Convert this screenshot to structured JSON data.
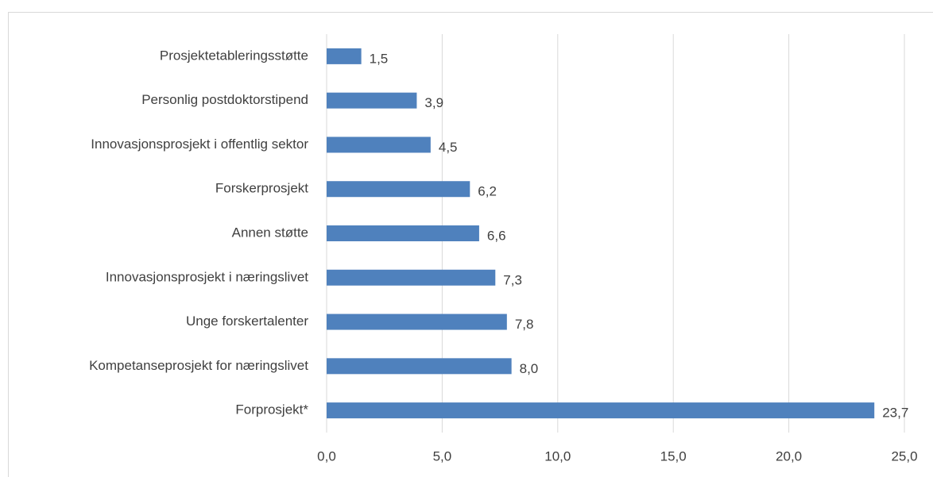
{
  "chart_data": {
    "type": "bar",
    "orientation": "horizontal",
    "categories": [
      "Prosjektetableringsstøtte",
      "Personlig postdoktorstipend",
      "Innovasjonsprosjekt i offentlig sektor",
      "Forskerprosjekt",
      "Annen støtte",
      "Innovasjonsprosjekt i næringslivet",
      "Unge forskertalenter",
      "Kompetanseprosjekt for næringslivet",
      "Forprosjekt*"
    ],
    "values": [
      1.5,
      3.9,
      4.5,
      6.2,
      6.6,
      7.3,
      7.8,
      8.0,
      23.7
    ],
    "value_labels": [
      "1,5",
      "3,9",
      "4,5",
      "6,2",
      "6,6",
      "7,3",
      "7,8",
      "8,0",
      "23,7"
    ],
    "color": "#4f81bd",
    "xlim": [
      0,
      25
    ],
    "xticks": [
      {
        "value": 0,
        "label": "0,0"
      },
      {
        "value": 5,
        "label": "5,0"
      },
      {
        "value": 10,
        "label": "10,0"
      },
      {
        "value": 15,
        "label": "15,0"
      },
      {
        "value": 20,
        "label": "20,0"
      },
      {
        "value": 25,
        "label": "25,0"
      }
    ],
    "grid": true
  }
}
